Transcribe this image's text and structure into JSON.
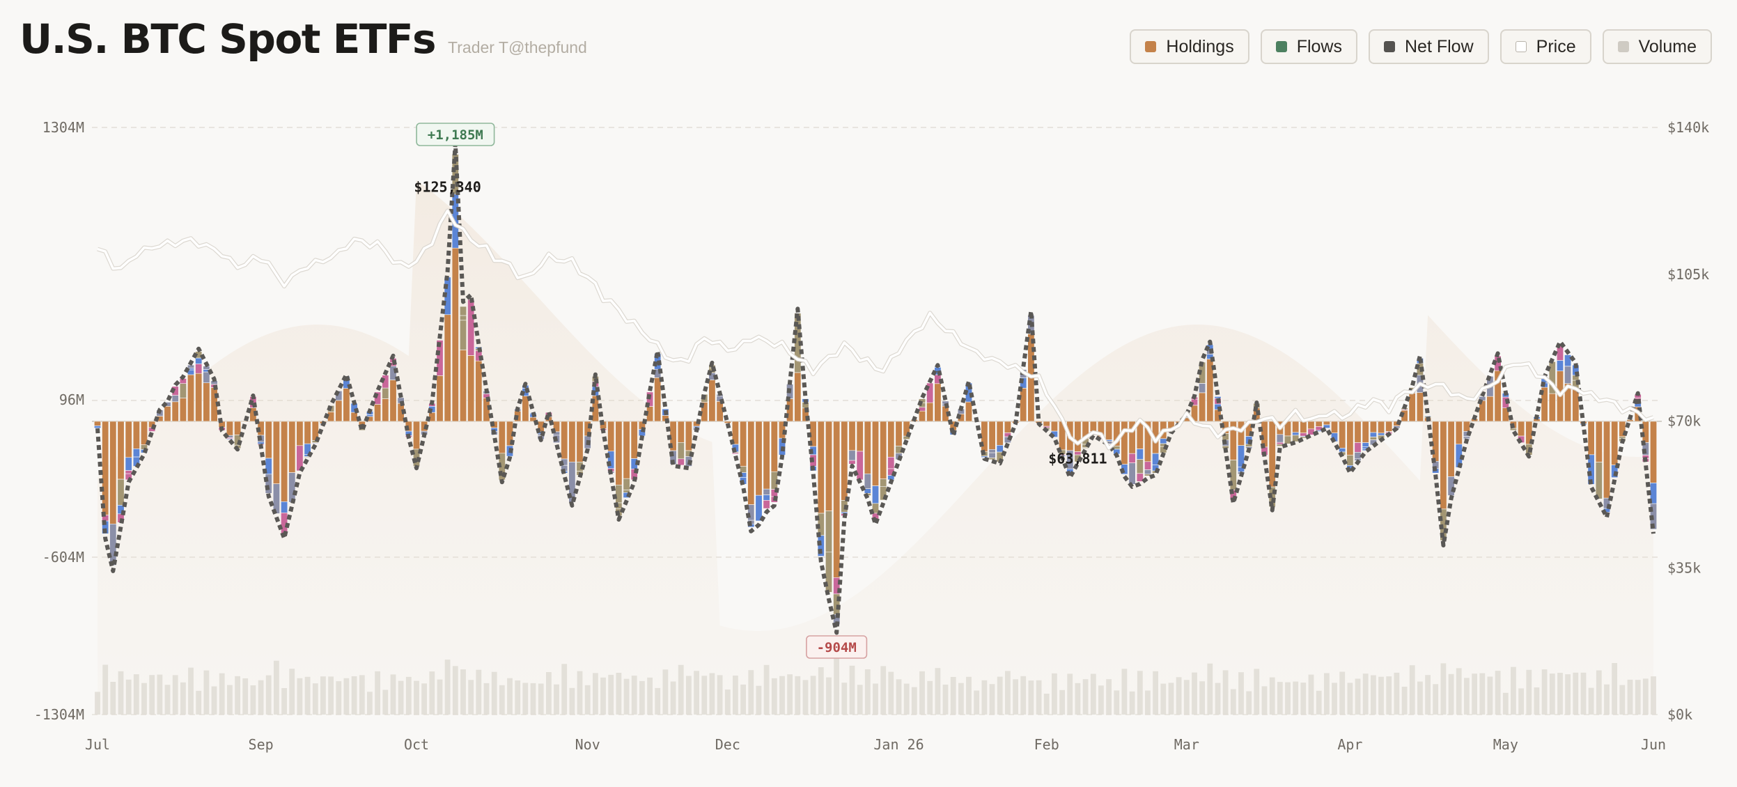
{
  "title": "U.S. BTC Spot ETFs",
  "credit": "Trader T@thepfund",
  "legend": [
    {
      "label": "Holdings",
      "color": "#c4824a"
    },
    {
      "label": "Flows",
      "color": "#4d8060"
    },
    {
      "label": "Net Flow",
      "color": "#555350"
    },
    {
      "label": "Price",
      "color": "#ffffff"
    },
    {
      "label": "Volume",
      "color": "#cfcbc3"
    }
  ],
  "colors": {
    "holdings": "#c4824a",
    "blue": "#5b85d6",
    "pink": "#c9679a",
    "gray": "#8b8fa8",
    "olive": "#a39673",
    "netflow": "#5a5855",
    "price": "#ffffff",
    "volume": "#dcd8d0",
    "grid": "#e2ded7",
    "zero": "#d3cfc8"
  },
  "chart_data": {
    "type": "bar",
    "left_axis": {
      "ticks": [
        "1304M",
        "96M",
        "-604M",
        "-1304M"
      ],
      "values": [
        1304,
        96,
        -604,
        -1304
      ],
      "range": [
        -1304,
        1304
      ]
    },
    "right_axis": {
      "ticks": [
        "$140k",
        "$105k",
        "$70k",
        "$35k",
        "$0k"
      ],
      "values": [
        140,
        105,
        70,
        35,
        0
      ],
      "range": [
        0,
        140
      ]
    },
    "x_labels": [
      "Jul",
      "Sep",
      "Oct",
      "Nov",
      "Dec",
      "Jan 26",
      "Feb",
      "Mar",
      "Apr",
      "May",
      "Jun"
    ],
    "x_label_positions": [
      0,
      21,
      41,
      63,
      81,
      103,
      122,
      140,
      161,
      181,
      200
    ],
    "n_days": 201,
    "flow_anchors": [
      [
        0,
        -30
      ],
      [
        1,
        -500
      ],
      [
        2,
        -640
      ],
      [
        4,
        -260
      ],
      [
        6,
        -140
      ],
      [
        8,
        50
      ],
      [
        11,
        190
      ],
      [
        13,
        310
      ],
      [
        15,
        180
      ],
      [
        16,
        -40
      ],
      [
        18,
        -120
      ],
      [
        20,
        110
      ],
      [
        22,
        -320
      ],
      [
        24,
        -500
      ],
      [
        26,
        -220
      ],
      [
        28,
        -100
      ],
      [
        30,
        70
      ],
      [
        32,
        200
      ],
      [
        34,
        -40
      ],
      [
        36,
        130
      ],
      [
        38,
        280
      ],
      [
        40,
        -70
      ],
      [
        41,
        -200
      ],
      [
        43,
        80
      ],
      [
        45,
        640
      ],
      [
        46,
        480
      ],
      [
        48,
        540
      ],
      [
        49,
        330
      ],
      [
        51,
        -60
      ],
      [
        52,
        -260
      ],
      [
        55,
        160
      ],
      [
        57,
        -80
      ],
      [
        58,
        40
      ],
      [
        60,
        -230
      ],
      [
        61,
        -360
      ],
      [
        63,
        -120
      ],
      [
        64,
        200
      ],
      [
        65,
        -40
      ],
      [
        67,
        -420
      ],
      [
        69,
        -260
      ],
      [
        71,
        130
      ],
      [
        72,
        300
      ],
      [
        74,
        -190
      ],
      [
        76,
        -200
      ],
      [
        78,
        120
      ],
      [
        79,
        250
      ],
      [
        81,
        -10
      ],
      [
        83,
        -280
      ],
      [
        84,
        -470
      ],
      [
        87,
        -360
      ],
      [
        88,
        -150
      ],
      [
        90,
        480
      ],
      [
        91,
        100
      ],
      [
        92,
        -220
      ],
      [
        93,
        -600
      ],
      [
        94,
        -760
      ],
      [
        95,
        -780
      ],
      [
        96,
        -420
      ],
      [
        97,
        -190
      ],
      [
        99,
        -330
      ],
      [
        100,
        -440
      ],
      [
        102,
        -260
      ],
      [
        104,
        -80
      ],
      [
        106,
        100
      ],
      [
        108,
        240
      ],
      [
        110,
        -60
      ],
      [
        112,
        170
      ],
      [
        114,
        -160
      ],
      [
        116,
        -180
      ],
      [
        118,
        -10
      ],
      [
        120,
        470
      ],
      [
        121,
        -10
      ],
      [
        123,
        -70
      ],
      [
        125,
        -240
      ],
      [
        127,
        -120
      ],
      [
        128,
        -60
      ],
      [
        130,
        -100
      ],
      [
        133,
        -280
      ],
      [
        136,
        -230
      ],
      [
        138,
        -50
      ],
      [
        140,
        30
      ],
      [
        143,
        340
      ],
      [
        145,
        -120
      ],
      [
        146,
        -350
      ],
      [
        148,
        -120
      ],
      [
        149,
        80
      ],
      [
        151,
        -380
      ],
      [
        152,
        -110
      ],
      [
        154,
        -90
      ],
      [
        156,
        -60
      ],
      [
        158,
        -30
      ],
      [
        160,
        -150
      ],
      [
        161,
        -220
      ],
      [
        163,
        -130
      ],
      [
        165,
        -80
      ],
      [
        167,
        -30
      ],
      [
        169,
        150
      ],
      [
        170,
        280
      ],
      [
        172,
        -230
      ],
      [
        173,
        -530
      ],
      [
        174,
        -330
      ],
      [
        176,
        -80
      ],
      [
        178,
        110
      ],
      [
        180,
        290
      ],
      [
        182,
        -40
      ],
      [
        184,
        -150
      ],
      [
        186,
        190
      ],
      [
        188,
        340
      ],
      [
        190,
        250
      ],
      [
        192,
        -280
      ],
      [
        194,
        -410
      ],
      [
        196,
        -90
      ],
      [
        198,
        120
      ],
      [
        200,
        -480
      ]
    ],
    "price_k": [
      [
        0,
        111
      ],
      [
        3,
        106
      ],
      [
        5,
        110
      ],
      [
        8,
        112
      ],
      [
        12,
        113
      ],
      [
        15,
        111
      ],
      [
        18,
        107
      ],
      [
        21,
        109
      ],
      [
        24,
        103
      ],
      [
        27,
        107
      ],
      [
        30,
        109
      ],
      [
        33,
        113
      ],
      [
        36,
        112
      ],
      [
        39,
        107
      ],
      [
        41,
        108
      ],
      [
        43,
        113
      ],
      [
        45,
        120
      ],
      [
        47,
        115
      ],
      [
        49,
        112
      ],
      [
        52,
        108
      ],
      [
        55,
        104
      ],
      [
        58,
        109
      ],
      [
        61,
        108
      ],
      [
        63,
        104
      ],
      [
        66,
        98
      ],
      [
        69,
        93
      ],
      [
        72,
        88
      ],
      [
        74,
        84
      ],
      [
        76,
        85
      ],
      [
        78,
        90
      ],
      [
        80,
        88
      ],
      [
        82,
        87
      ],
      [
        84,
        90
      ],
      [
        86,
        89
      ],
      [
        88,
        88
      ],
      [
        90,
        85
      ],
      [
        92,
        82
      ],
      [
        94,
        85
      ],
      [
        96,
        88
      ],
      [
        99,
        84
      ],
      [
        101,
        82
      ],
      [
        103,
        87
      ],
      [
        105,
        91
      ],
      [
        107,
        95
      ],
      [
        109,
        92
      ],
      [
        111,
        89
      ],
      [
        113,
        86
      ],
      [
        116,
        84
      ],
      [
        119,
        82
      ],
      [
        121,
        80
      ],
      [
        122,
        77
      ],
      [
        124,
        70
      ],
      [
        126,
        64
      ],
      [
        128,
        68
      ],
      [
        130,
        64
      ],
      [
        132,
        67
      ],
      [
        134,
        70
      ],
      [
        136,
        66
      ],
      [
        138,
        68
      ],
      [
        140,
        71
      ],
      [
        142,
        69
      ],
      [
        144,
        67
      ],
      [
        146,
        68
      ],
      [
        148,
        69
      ],
      [
        150,
        71
      ],
      [
        152,
        69
      ],
      [
        154,
        72
      ],
      [
        156,
        70
      ],
      [
        158,
        72
      ],
      [
        160,
        71
      ],
      [
        162,
        73
      ],
      [
        164,
        75
      ],
      [
        166,
        73
      ],
      [
        168,
        77
      ],
      [
        170,
        78
      ],
      [
        172,
        79
      ],
      [
        174,
        77
      ],
      [
        176,
        75
      ],
      [
        178,
        77
      ],
      [
        180,
        80
      ],
      [
        182,
        84
      ],
      [
        184,
        83
      ],
      [
        186,
        80
      ],
      [
        188,
        77
      ],
      [
        190,
        78
      ],
      [
        192,
        76
      ],
      [
        194,
        75
      ],
      [
        196,
        73
      ],
      [
        198,
        72
      ],
      [
        200,
        70
      ]
    ],
    "annotations": [
      {
        "label": "+1,185M",
        "kind": "max_flow",
        "value": 1185,
        "day": 46
      },
      {
        "label": "-904M",
        "kind": "min_flow",
        "value": -904,
        "day": 95
      },
      {
        "label": "$125,340",
        "kind": "max_price",
        "day": 45
      },
      {
        "label": "$63,811",
        "kind": "min_price",
        "day": 126
      }
    ]
  }
}
